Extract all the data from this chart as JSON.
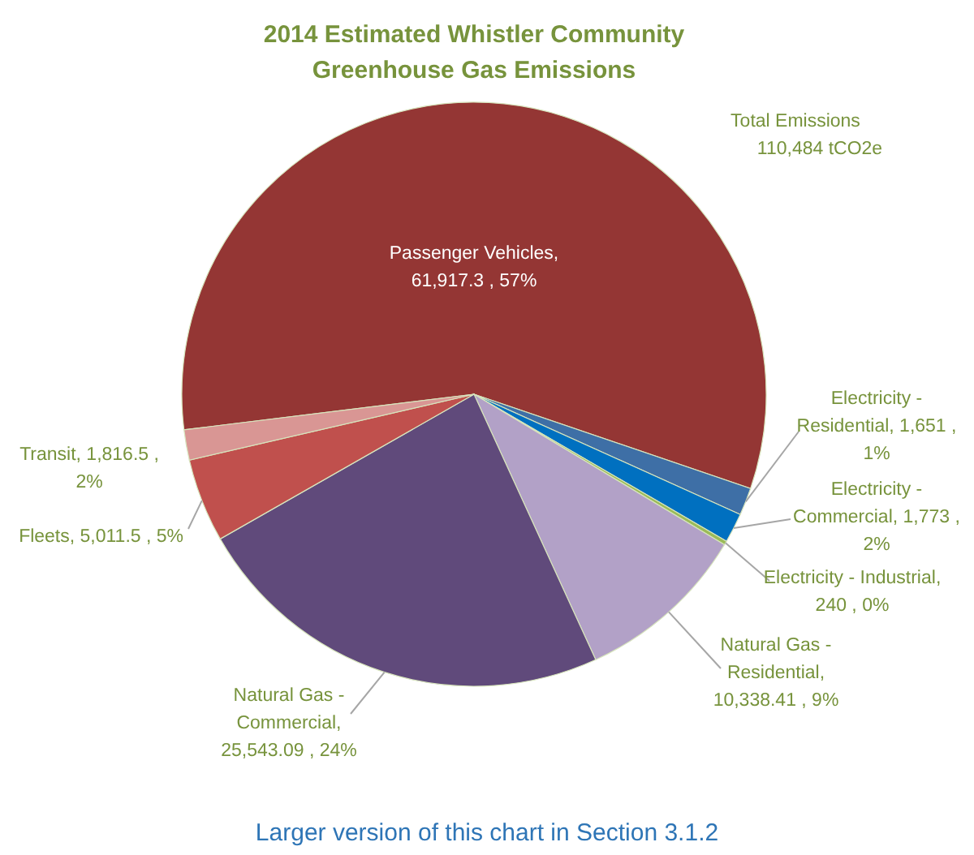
{
  "chart_data": {
    "type": "pie",
    "title": "2014 Estimated Whistler Community Greenhouse Gas Emissions",
    "categories": [
      "Passenger Vehicles",
      "Electricity - Residential",
      "Electricity - Commercial",
      "Electricity - Industrial",
      "Natural Gas - Residential",
      "Natural Gas - Commercial",
      "Fleets",
      "Transit"
    ],
    "values": [
      61917.3,
      1651,
      1773,
      240,
      10338.41,
      25543.09,
      5011.5,
      1816.5
    ],
    "value_labels": [
      ", 61,917.3 , 57%",
      ",  1,651 , 1%",
      ",  1,773 , 2%",
      ", 240 , 0%",
      ", 10,338.41 , 9%",
      ", 25,543.09 , 24%",
      ",  5,011.5 , 5%",
      ",  1,816.5 , 2%"
    ],
    "colors": [
      "#943634",
      "#3e6fa6",
      "#0070c0",
      "#9bbb59",
      "#b2a1c7",
      "#604a7b",
      "#c0504d",
      "#d99694"
    ],
    "annotations": [
      "Total Emissions 110,484 tCO2e",
      "Larger version of this chart in Section 3.1.2"
    ]
  }
}
